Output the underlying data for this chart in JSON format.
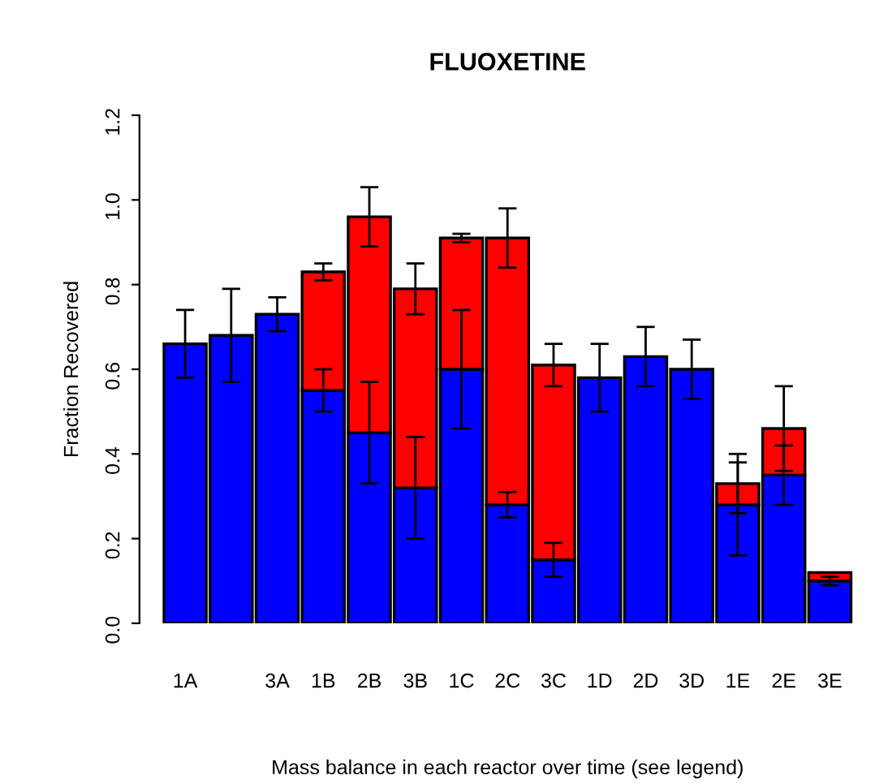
{
  "chart_data": {
    "type": "bar",
    "title": "FLUOXETINE",
    "xlabel": "Mass balance in each reactor over time (see legend)",
    "ylabel": "Fraction Recovered",
    "categories": [
      "1A",
      null,
      "3A",
      "1B",
      "2B",
      "3B",
      "1C",
      "2C",
      "3C",
      "1D",
      "2D",
      "3D",
      "1E",
      "2E",
      "3E"
    ],
    "stacked": true,
    "series": [
      {
        "color": "#0000ff",
        "values": [
          0.66,
          0.68,
          0.73,
          0.55,
          0.45,
          0.32,
          0.6,
          0.28,
          0.15,
          0.58,
          0.63,
          0.6,
          0.28,
          0.35,
          0.1
        ],
        "errors": [
          [
            0.58,
            0.74
          ],
          [
            0.57,
            0.79
          ],
          [
            0.69,
            0.77
          ],
          [
            0.5,
            0.6
          ],
          [
            0.33,
            0.57
          ],
          [
            0.2,
            0.44
          ],
          [
            0.46,
            0.74
          ],
          [
            0.25,
            0.31
          ],
          [
            0.11,
            0.19
          ],
          [
            0.5,
            0.66
          ],
          [
            0.56,
            0.7
          ],
          [
            0.53,
            0.67
          ],
          [
            0.16,
            0.38
          ],
          [
            0.28,
            0.42
          ],
          [
            0.09,
            0.11
          ]
        ]
      },
      {
        "color": "#ff0000",
        "values": [
          null,
          null,
          null,
          0.28,
          0.51,
          0.47,
          0.31,
          0.63,
          0.46,
          null,
          null,
          null,
          0.05,
          0.11,
          0.02
        ],
        "errors": [
          null,
          null,
          null,
          [
            0.81,
            0.85
          ],
          [
            0.89,
            1.03
          ],
          [
            0.73,
            0.85
          ],
          [
            0.9,
            0.92
          ],
          [
            0.84,
            0.98
          ],
          [
            0.56,
            0.66
          ],
          null,
          null,
          null,
          [
            0.26,
            0.4
          ],
          [
            0.36,
            0.56
          ],
          null
        ]
      }
    ],
    "ylim": [
      0,
      1.2
    ],
    "yticks": [
      {
        "value": 0,
        "label": "0.0"
      },
      0.2,
      0.4,
      0.6,
      0.8,
      {
        "value": 1,
        "label": "1.0"
      },
      1.2
    ],
    "grid": false,
    "legend": false
  }
}
